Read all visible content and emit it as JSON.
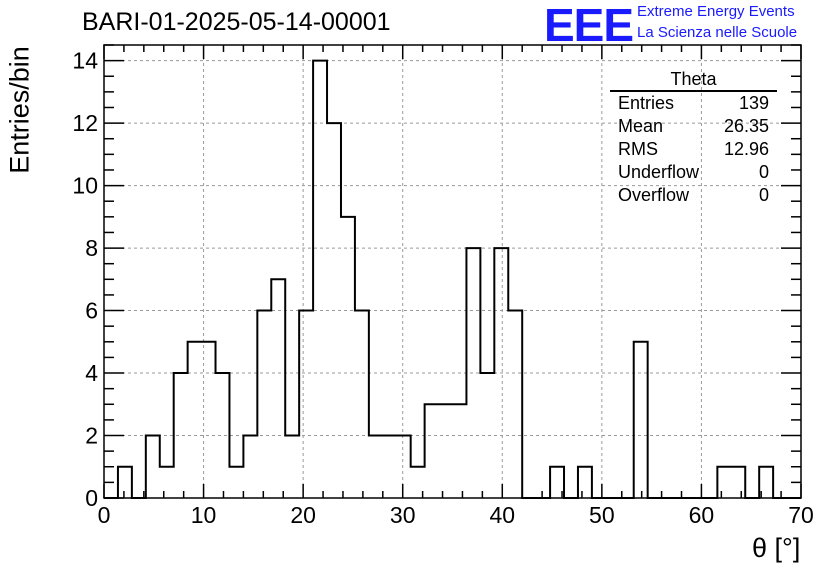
{
  "header": {
    "title": "BARI-01-2025-05-14-00001"
  },
  "logo": {
    "mark": "EEE",
    "line1": "Extreme Energy Events",
    "line2": "La Scienza nelle Scuole"
  },
  "colors": {
    "logo": "#1a1aff",
    "line": "#000000",
    "grid": "#9a9a9a"
  },
  "stats": {
    "name": "Theta",
    "rows": [
      {
        "label": "Entries",
        "value": "139"
      },
      {
        "label": "Mean",
        "value": "26.35"
      },
      {
        "label": "RMS",
        "value": "12.96"
      },
      {
        "label": "Underflow",
        "value": "0"
      },
      {
        "label": "Overflow",
        "value": "0"
      }
    ]
  },
  "chart_data": {
    "type": "bar",
    "histogram": true,
    "xlabel": "θ [°]",
    "ylabel": "Entries/bin",
    "xlim": [
      0,
      70
    ],
    "ylim": [
      0,
      14.5
    ],
    "bin_width": 1.4,
    "bin_start": 0,
    "values": [
      0,
      1,
      0,
      2,
      1,
      4,
      5,
      5,
      4,
      1,
      2,
      6,
      7,
      2,
      6,
      14,
      12,
      9,
      6,
      2,
      2,
      2,
      1,
      3,
      3,
      3,
      8,
      4,
      8,
      6,
      0,
      0,
      1,
      0,
      1,
      0,
      0,
      0,
      5,
      0,
      0,
      0,
      0,
      0,
      1,
      1,
      0,
      1,
      0,
      0
    ],
    "xticks": [
      0,
      10,
      20,
      30,
      40,
      50,
      60,
      70
    ],
    "yticks": [
      0,
      2,
      4,
      6,
      8,
      10,
      12,
      14
    ],
    "grid": true,
    "legend": "top-right stats box"
  }
}
